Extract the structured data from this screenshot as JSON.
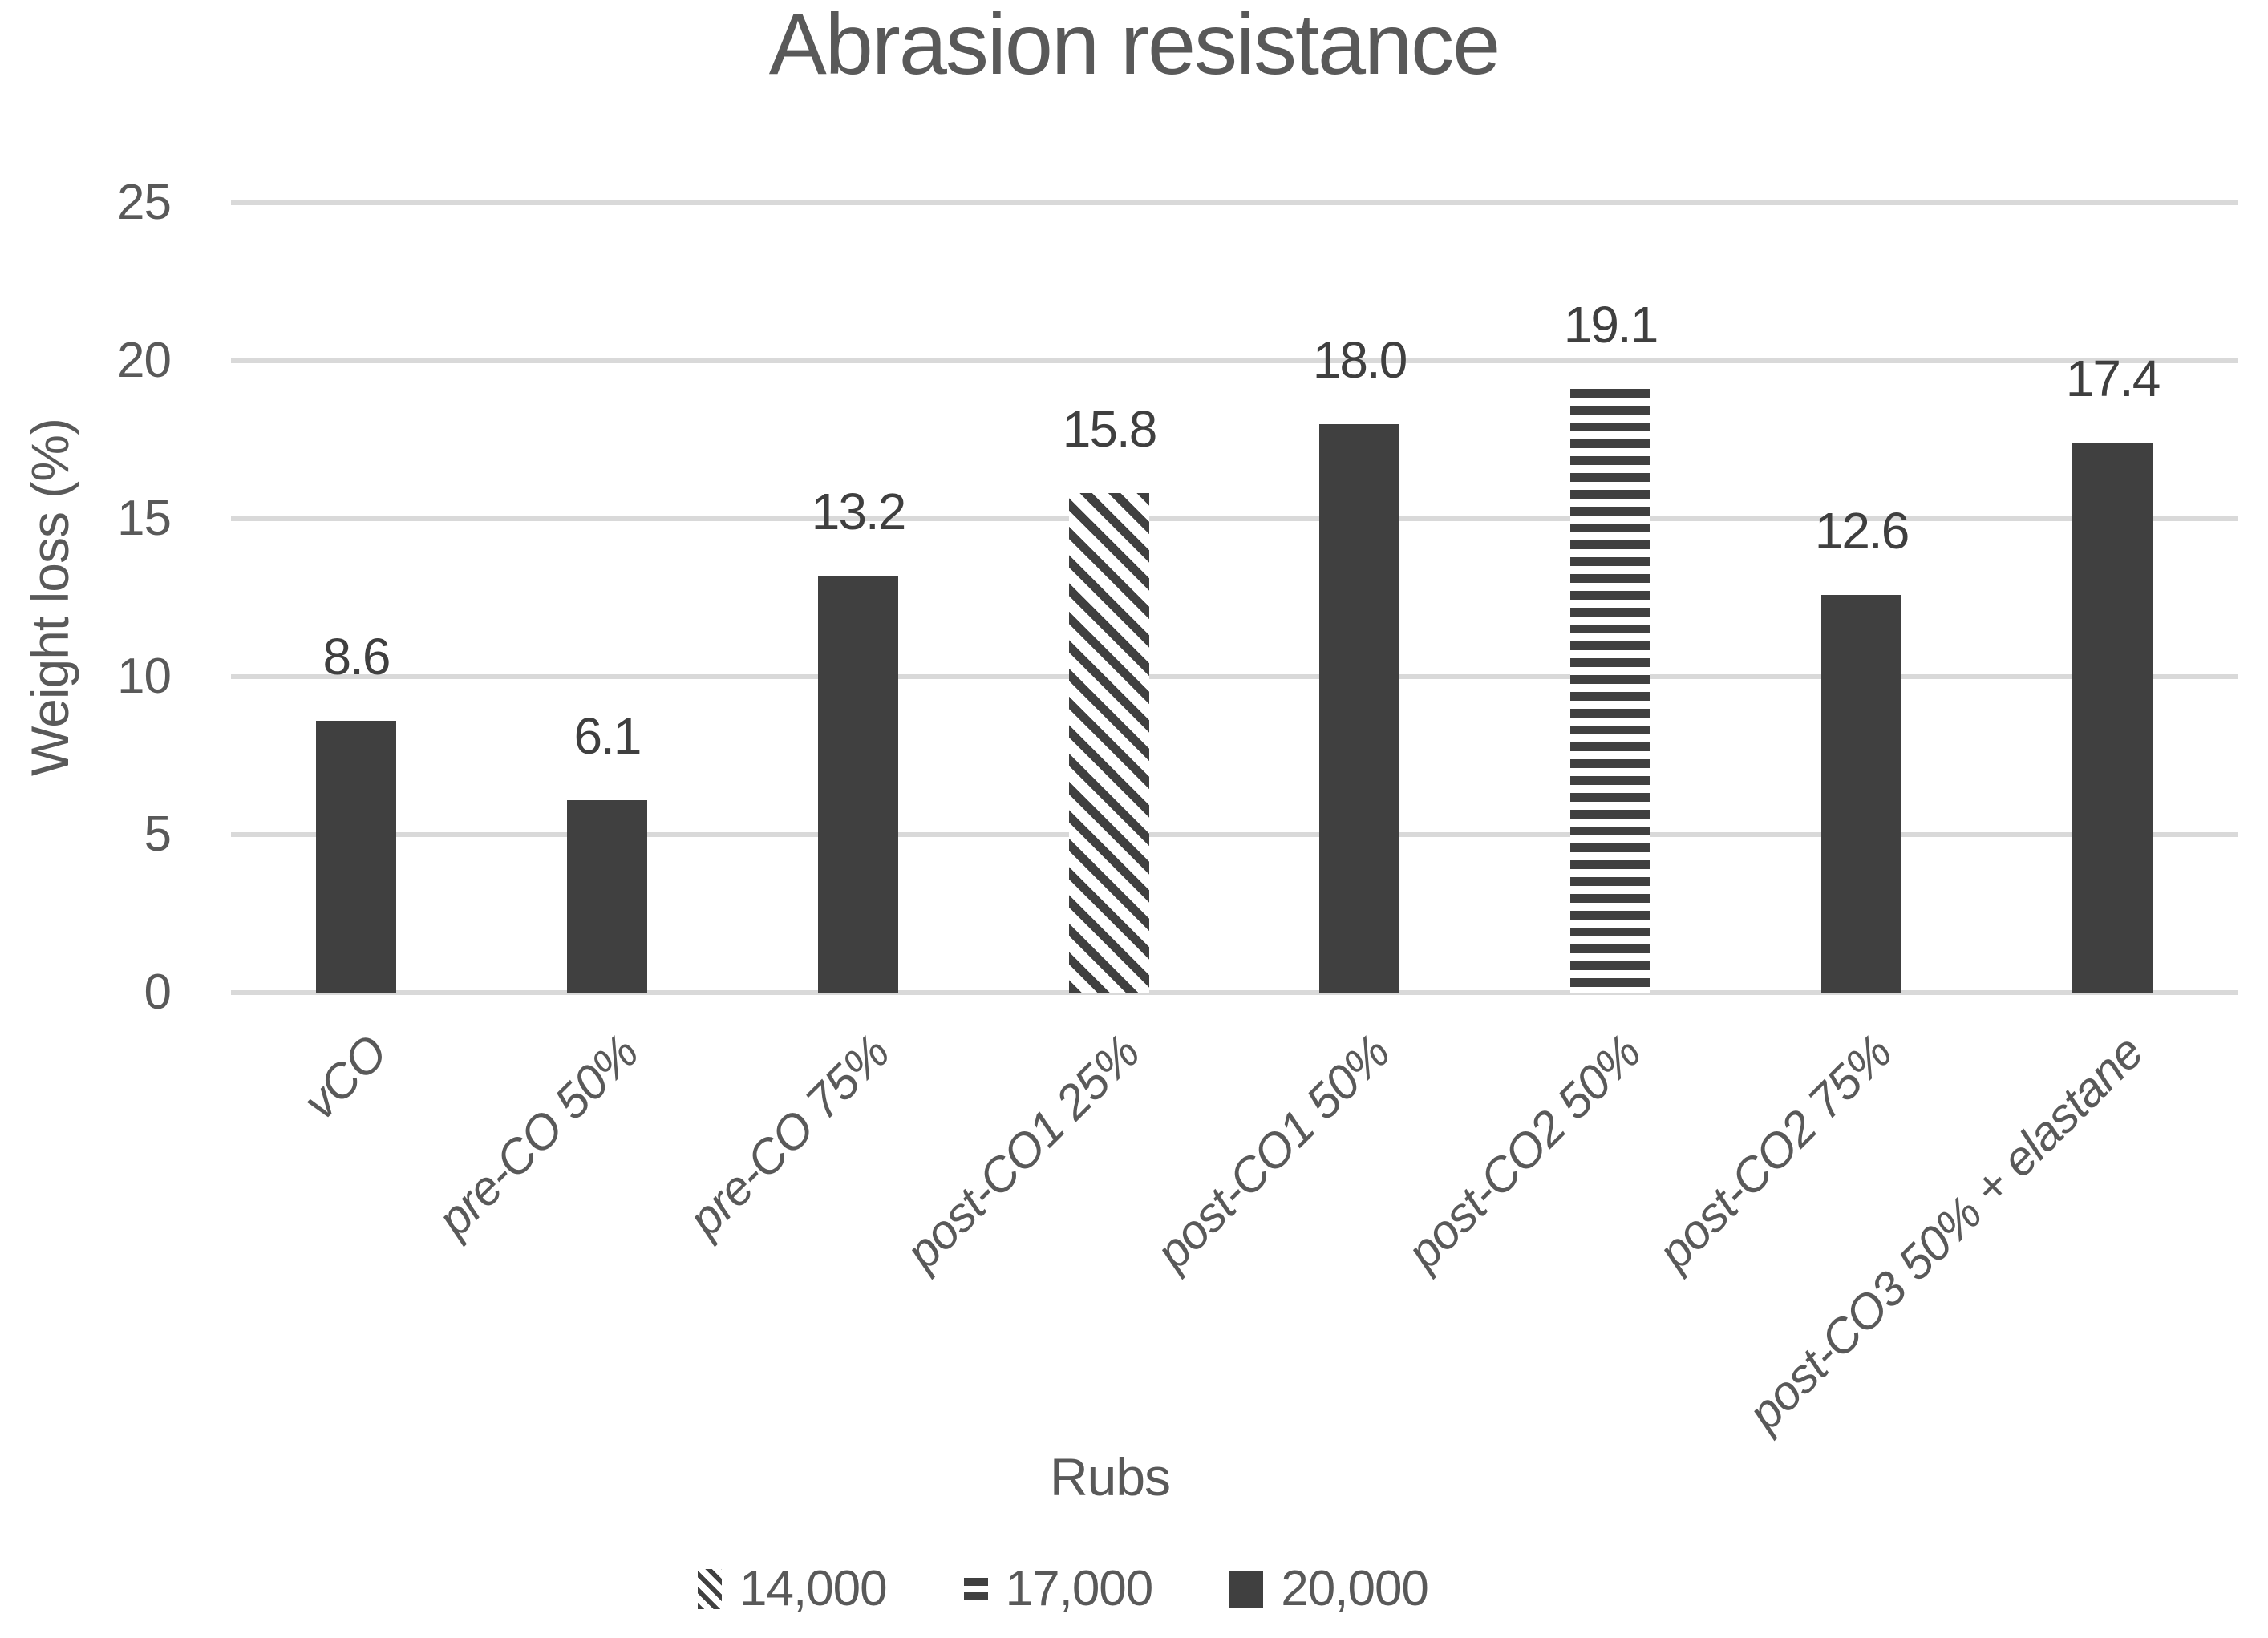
{
  "title": "Abrasion resistance",
  "colors": {
    "bar": "#404040",
    "text": "#595959",
    "data_label": "#3f3f3f",
    "gridline": "#d9d9d9",
    "background": "#ffffff"
  },
  "chart_data": {
    "type": "bar",
    "title": "Abrasion resistance",
    "xlabel": "Rubs",
    "ylabel": "Weight loss (%)",
    "ylim": [
      0,
      25
    ],
    "ytick_step": 5,
    "yticks": [
      0,
      5,
      10,
      15,
      20,
      25
    ],
    "grid": true,
    "legend_position": "bottom",
    "categories": [
      "vCO",
      "pre-CO 50%",
      "pre-CO 75%",
      "post-CO1 25%",
      "post-CO1 50%",
      "post-CO2 50%",
      "post-CO2 75%",
      "post-CO3 50% + elastane"
    ],
    "values": [
      8.6,
      6.1,
      13.2,
      15.8,
      18.0,
      19.1,
      12.6,
      17.4
    ],
    "bars": [
      {
        "category": "vCO",
        "value": 8.6,
        "label": "8.6",
        "pattern": "solid",
        "series": "20,000"
      },
      {
        "category": "pre-CO 50%",
        "value": 6.1,
        "label": "6.1",
        "pattern": "solid",
        "series": "20,000"
      },
      {
        "category": "pre-CO 75%",
        "value": 13.2,
        "label": "13.2",
        "pattern": "solid",
        "series": "20,000"
      },
      {
        "category": "post-CO1 25%",
        "value": 15.8,
        "label": "15.8",
        "pattern": "diagonal-hatch",
        "series": "14,000"
      },
      {
        "category": "post-CO1 50%",
        "value": 18.0,
        "label": "18.0",
        "pattern": "solid",
        "series": "20,000"
      },
      {
        "category": "post-CO2 50%",
        "value": 19.1,
        "label": "19.1",
        "pattern": "horizontal-stripes",
        "series": "17,000"
      },
      {
        "category": "post-CO2 75%",
        "value": 12.6,
        "label": "12.6",
        "pattern": "solid",
        "series": "20,000"
      },
      {
        "category": "post-CO3 50% + elastane",
        "value": 17.4,
        "label": "17.4",
        "pattern": "solid",
        "series": "20,000"
      }
    ],
    "legend": [
      {
        "label": "14,000",
        "pattern": "diagonal-hatch"
      },
      {
        "label": "17,000",
        "pattern": "horizontal-stripes"
      },
      {
        "label": "20,000",
        "pattern": "solid"
      }
    ]
  }
}
